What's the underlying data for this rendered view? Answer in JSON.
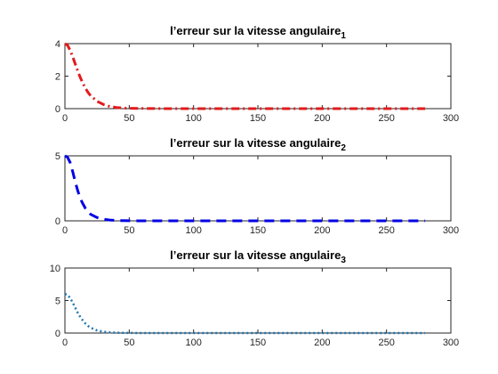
{
  "chart_data": [
    {
      "type": "line",
      "title": "l’erreur sur la vitesse angulaire",
      "title_subscript": "1",
      "xlim": [
        0,
        300
      ],
      "ylim": [
        0,
        4
      ],
      "xticks": [
        0,
        50,
        100,
        150,
        200,
        250,
        300
      ],
      "yticks": [
        0,
        2,
        4
      ],
      "grid": false,
      "series": [
        {
          "style": "dash-dot",
          "color": "#e31a1c",
          "x": [
            0,
            2,
            4,
            6,
            8,
            10,
            12,
            14,
            16,
            18,
            20,
            25,
            30,
            35,
            40,
            45,
            50,
            60,
            80,
            100,
            150,
            200,
            250,
            280
          ],
          "y": [
            4.0,
            3.9,
            3.6,
            3.2,
            2.75,
            2.3,
            1.9,
            1.55,
            1.25,
            1.0,
            0.8,
            0.45,
            0.25,
            0.13,
            0.07,
            0.04,
            0.02,
            0.01,
            0,
            0,
            0,
            0,
            0,
            0
          ]
        }
      ]
    },
    {
      "type": "line",
      "title": "l’erreur sur la vitesse angulaire",
      "title_subscript": "2",
      "xlim": [
        0,
        300
      ],
      "ylim": [
        0,
        5
      ],
      "xticks": [
        0,
        50,
        100,
        150,
        200,
        250,
        300
      ],
      "yticks": [
        0,
        5
      ],
      "grid": false,
      "series": [
        {
          "style": "dashed",
          "color": "#0000e6",
          "x": [
            0,
            2,
            4,
            6,
            8,
            10,
            12,
            14,
            16,
            18,
            20,
            25,
            30,
            35,
            40,
            45,
            50,
            60,
            80,
            100,
            150,
            200,
            250,
            280
          ],
          "y": [
            5.0,
            4.9,
            4.5,
            3.8,
            3.0,
            2.3,
            1.7,
            1.3,
            0.95,
            0.7,
            0.5,
            0.25,
            0.12,
            0.06,
            0.03,
            0.015,
            0.01,
            0,
            0,
            0,
            0,
            0,
            0,
            0
          ]
        }
      ]
    },
    {
      "type": "line",
      "title": "l’erreur sur la vitesse angulaire",
      "title_subscript": "3",
      "xlim": [
        0,
        300
      ],
      "ylim": [
        0,
        10
      ],
      "xticks": [
        0,
        50,
        100,
        150,
        200,
        250,
        300
      ],
      "yticks": [
        0,
        5,
        10
      ],
      "grid": false,
      "series": [
        {
          "style": "dotted",
          "color": "#1f77b4",
          "x": [
            0,
            2,
            4,
            6,
            8,
            10,
            12,
            14,
            16,
            18,
            20,
            25,
            30,
            35,
            40,
            45,
            50,
            60,
            80,
            100,
            150,
            200,
            250,
            280
          ],
          "y": [
            6.0,
            5.9,
            5.4,
            4.7,
            3.9,
            3.1,
            2.45,
            1.9,
            1.45,
            1.1,
            0.82,
            0.4,
            0.2,
            0.1,
            0.05,
            0.025,
            0.01,
            0,
            0,
            0,
            0,
            0,
            0,
            0
          ]
        }
      ]
    }
  ]
}
